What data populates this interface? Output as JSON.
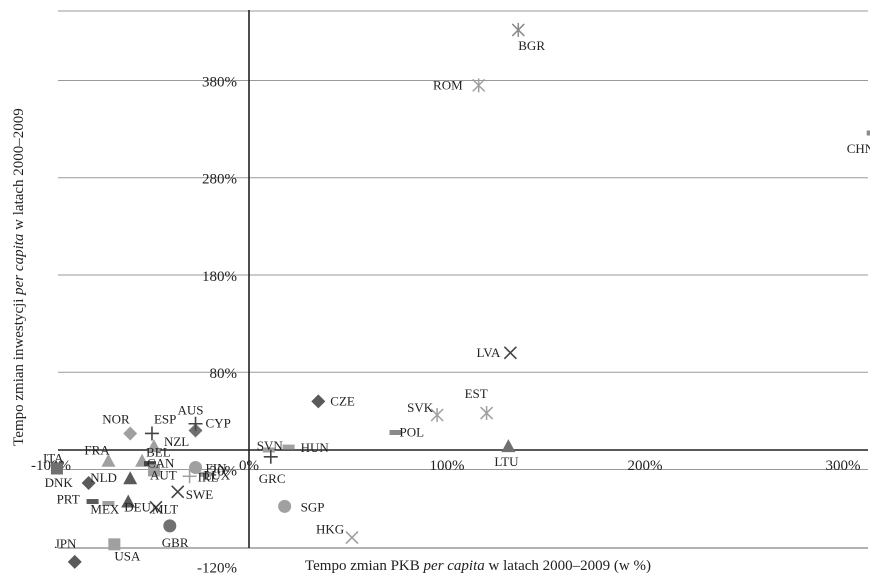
{
  "chart_data": {
    "type": "scatter",
    "title": "",
    "xlabel": "Tempo zmian PKB per capita w latach 2000–2009 (w %)",
    "xlabel_parts": [
      {
        "text": "Tempo zmian PKB ",
        "italic": false
      },
      {
        "text": "per capita",
        "italic": true
      },
      {
        "text": " w latach 2000–2009 (w %)",
        "italic": false
      }
    ],
    "ylabel": "Tempo zmian inwestycji per capita w latach 2000–2009",
    "ylabel_parts": [
      {
        "text": "Tempo zmian inwestycji ",
        "italic": false
      },
      {
        "text": "per capita",
        "italic": true
      },
      {
        "text": " w latach 2000–2009",
        "italic": false
      }
    ],
    "xlim": [
      -120,
      320
    ],
    "ylim": [
      -120,
      470
    ],
    "x_ticks": [
      {
        "value": -100,
        "label": "-100%"
      },
      {
        "value": 0,
        "label": "0%"
      },
      {
        "value": 100,
        "label": "100%"
      },
      {
        "value": 200,
        "label": "200%"
      },
      {
        "value": 300,
        "label": "300%"
      }
    ],
    "y_ticks": [
      {
        "value": -120,
        "label": "-120%"
      },
      {
        "value": -20,
        "label": "-20%"
      },
      {
        "value": 80,
        "label": "80%"
      },
      {
        "value": 180,
        "label": "180%"
      },
      {
        "value": 280,
        "label": "280%"
      },
      {
        "value": 380,
        "label": "380%"
      }
    ],
    "grid": "horizontal",
    "legend": "none",
    "marker_colors": {
      "dark": "#5a5a5a",
      "light": "#a0a0a0"
    },
    "points": [
      {
        "label": "BGR",
        "x": 136,
        "y": 432,
        "marker": "star",
        "color": "#8a8a8a"
      },
      {
        "label": "ROM",
        "x": 116,
        "y": 375,
        "marker": "star",
        "color": "#a0a0a0"
      },
      {
        "label": "CHN",
        "x": 315,
        "y": 326,
        "marker": "dash",
        "color": "#8a8a8a"
      },
      {
        "label": "LVA",
        "x": 132,
        "y": 100,
        "marker": "x",
        "color": "#444444"
      },
      {
        "label": "CZE",
        "x": 35,
        "y": 50,
        "marker": "diamond",
        "color": "#5a5a5a"
      },
      {
        "label": "SVK",
        "x": 95,
        "y": 36,
        "marker": "star",
        "color": "#a0a0a0"
      },
      {
        "label": "EST",
        "x": 120,
        "y": 38,
        "marker": "star",
        "color": "#a0a0a0"
      },
      {
        "label": "POL",
        "x": 74,
        "y": 18,
        "marker": "dash",
        "color": "#8a8a8a"
      },
      {
        "label": "LTU",
        "x": 131,
        "y": 4,
        "marker": "triangle",
        "color": "#707070"
      },
      {
        "label": "HUN",
        "x": 20,
        "y": 3,
        "marker": "dash",
        "color": "#a0a0a0"
      },
      {
        "label": "SVN",
        "x": 10,
        "y": 0,
        "marker": "dash",
        "color": "#a0a0a0"
      },
      {
        "label": "GRC",
        "x": 11,
        "y": -7,
        "marker": "plus",
        "color": "#444444"
      },
      {
        "label": "SGP",
        "x": 18,
        "y": -58,
        "marker": "circle",
        "color": "#a0a0a0"
      },
      {
        "label": "HKG",
        "x": 52,
        "y": -90,
        "marker": "x",
        "color": "#a0a0a0"
      },
      {
        "label": "AUS",
        "x": -27,
        "y": 20,
        "marker": "diamond",
        "color": "#707070"
      },
      {
        "label": "CYP",
        "x": -27,
        "y": 27,
        "marker": "plus",
        "color": "#444444"
      },
      {
        "label": "NOR",
        "x": -60,
        "y": 17,
        "marker": "diamond",
        "color": "#a0a0a0"
      },
      {
        "label": "ESP",
        "x": -49,
        "y": 17,
        "marker": "plus",
        "color": "#444444"
      },
      {
        "label": "NZL",
        "x": -48,
        "y": 4,
        "marker": "triangle",
        "color": "#a0a0a0"
      },
      {
        "label": "ITA",
        "x": -97,
        "y": -19,
        "marker": "square",
        "color": "#707070"
      },
      {
        "label": "FRA",
        "x": -71,
        "y": -11,
        "marker": "triangle",
        "color": "#a0a0a0"
      },
      {
        "label": "BEL",
        "x": -54,
        "y": -11,
        "marker": "triangle",
        "color": "#a0a0a0"
      },
      {
        "label": "CAN",
        "x": -50,
        "y": -14,
        "marker": "dash",
        "color": "#444444"
      },
      {
        "label": "FIN",
        "x": -27,
        "y": -18,
        "marker": "circle",
        "color": "#a0a0a0"
      },
      {
        "label": "LUX",
        "x": -22,
        "y": -25,
        "marker": "dash",
        "color": "#a0a0a0"
      },
      {
        "label": "IRL",
        "x": -30,
        "y": -27,
        "marker": "plus",
        "color": "#a0a0a0"
      },
      {
        "label": "AUT",
        "x": -48,
        "y": -21,
        "marker": "square",
        "color": "#a0a0a0"
      },
      {
        "label": "DNK",
        "x": -81,
        "y": -34,
        "marker": "diamond",
        "color": "#5a5a5a"
      },
      {
        "label": "NLD",
        "x": -60,
        "y": -29,
        "marker": "triangle",
        "color": "#5a5a5a"
      },
      {
        "label": "SWE",
        "x": -36,
        "y": -43,
        "marker": "x",
        "color": "#444444"
      },
      {
        "label": "PRT",
        "x": -79,
        "y": -53,
        "marker": "dash",
        "color": "#5a5a5a"
      },
      {
        "label": "MEX",
        "x": -71,
        "y": -55,
        "marker": "dash",
        "color": "#a0a0a0"
      },
      {
        "label": "DEU",
        "x": -61,
        "y": -53,
        "marker": "triangle",
        "color": "#5a5a5a"
      },
      {
        "label": "MLT",
        "x": -47,
        "y": -59,
        "marker": "x",
        "color": "#444444"
      },
      {
        "label": "JPN",
        "x": -88,
        "y": -115,
        "marker": "diamond",
        "color": "#5a5a5a"
      },
      {
        "label": "USA",
        "x": -68,
        "y": -97,
        "marker": "square",
        "color": "#a0a0a0"
      },
      {
        "label": "GBR",
        "x": -40,
        "y": -78,
        "marker": "circle",
        "color": "#707070"
      }
    ]
  }
}
